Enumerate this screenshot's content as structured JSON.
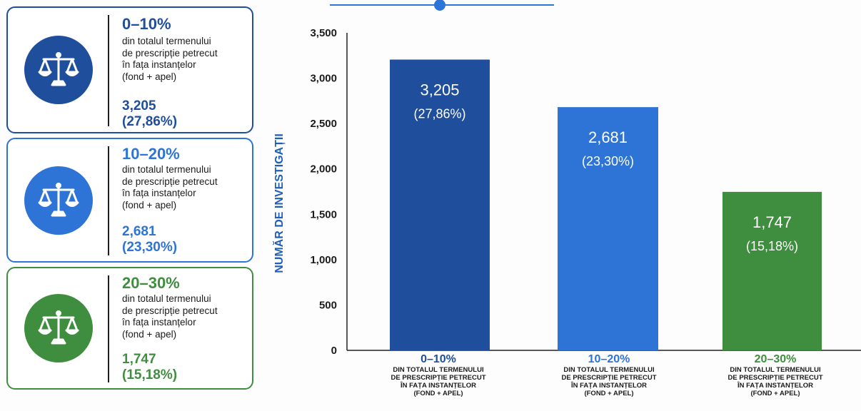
{
  "colors": {
    "dark_blue": "#1f4e9c",
    "mid_blue": "#2e73d6",
    "green": "#3f8d3e"
  },
  "cards": [
    {
      "range": "0–10%",
      "desc": "din totalul termenului\nde prescripție petrecut\nîn fața instanțelor\n(fond + apel)",
      "count": "3,205",
      "pct": "(27,86%)",
      "icon": "scales-icon"
    },
    {
      "range": "10–20%",
      "desc": "din totalul termenului\nde prescripție petrecut\nîn fața instanțelor\n(fond + apel)",
      "count": "2,681",
      "pct": "(23,30%)",
      "icon": "scales-icon"
    },
    {
      "range": "20–30%",
      "desc": "din totalul termenului\nde prescripție petrecut\nîn fața instanțelor\n(fond + apel)",
      "count": "1,747",
      "pct": "(15,18%)",
      "icon": "scales-icon"
    }
  ],
  "chart_data": {
    "type": "bar",
    "categories": [
      "0–10%",
      "10–20%",
      "20–30%"
    ],
    "category_descriptions": [
      "DIN TOTALUL TERMENULUI\nDE PRESCRIPȚIE PETRECUT\nÎN FAȚA INSTANȚELOR\n(FOND + APEL)",
      "DIN TOTALUL TERMENULUI\nDE PRESCRIPȚIE PETRECUT\nÎN FAȚA INSTANȚELOR\n(FOND + APEL)",
      "DIN TOTALUL TERMENULUI\nDE PRESCRIPȚIE PETRECUT\nÎN FAȚA INSTANȚELOR\n(FOND + APEL)"
    ],
    "values": [
      3205,
      2681,
      1747
    ],
    "value_labels": [
      "3,205",
      "2,681",
      "1,747"
    ],
    "percent_labels": [
      "(27,86%)",
      "(23,30%)",
      "(15,18%)"
    ],
    "ylabel": "NUMĂR DE INVESTIGAȚII",
    "ylim": [
      0,
      3500
    ],
    "yticks": [
      0,
      500,
      1000,
      1500,
      2000,
      2500,
      3000,
      3500
    ],
    "ytick_labels": [
      "0",
      "500",
      "1,000",
      "1,500",
      "2,000",
      "2,500",
      "3,000",
      "3,500"
    ],
    "grid": false
  }
}
